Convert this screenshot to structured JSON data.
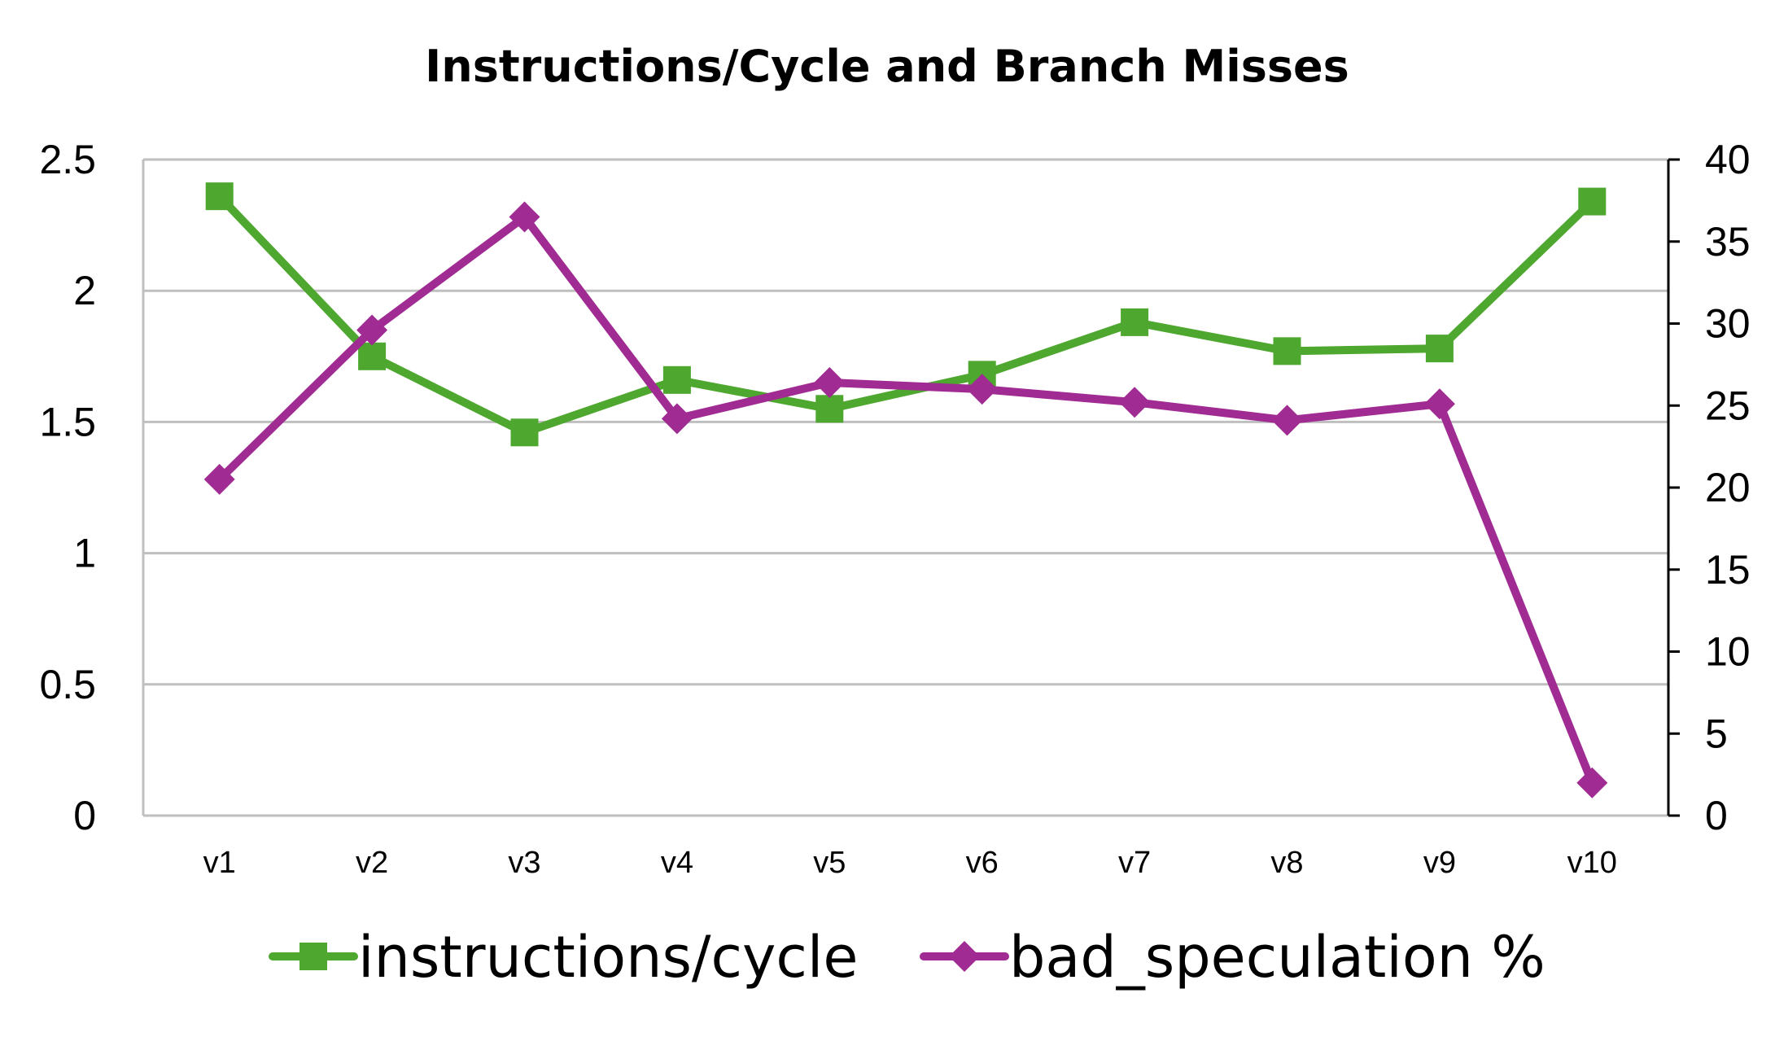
{
  "chart_data": {
    "type": "line",
    "title": "Instructions/Cycle and Branch Misses",
    "categories": [
      "v1",
      "v2",
      "v3",
      "v4",
      "v5",
      "v6",
      "v7",
      "v8",
      "v9",
      "v10"
    ],
    "axes": {
      "left": {
        "ylim": [
          0,
          2.5
        ],
        "ticks": [
          "0",
          "0.5",
          "1",
          "1.5",
          "2",
          "2.5"
        ]
      },
      "right": {
        "ylim": [
          0,
          40
        ],
        "ticks": [
          "0",
          "5",
          "10",
          "15",
          "20",
          "25",
          "30",
          "35",
          "40"
        ]
      }
    },
    "grid": true,
    "legend_position": "bottom",
    "series": [
      {
        "name": "instructions/cycle",
        "axis": "left",
        "marker": "square",
        "color": "#4ea72e",
        "values": [
          2.36,
          1.75,
          1.46,
          1.66,
          1.55,
          1.68,
          1.88,
          1.77,
          1.78,
          2.34
        ]
      },
      {
        "name": "bad_speculation %",
        "axis": "right",
        "marker": "diamond",
        "color": "#a02b93",
        "values": [
          20.5,
          29.6,
          36.5,
          24.2,
          26.4,
          26.0,
          25.2,
          24.1,
          25.1,
          2.0
        ]
      }
    ]
  }
}
